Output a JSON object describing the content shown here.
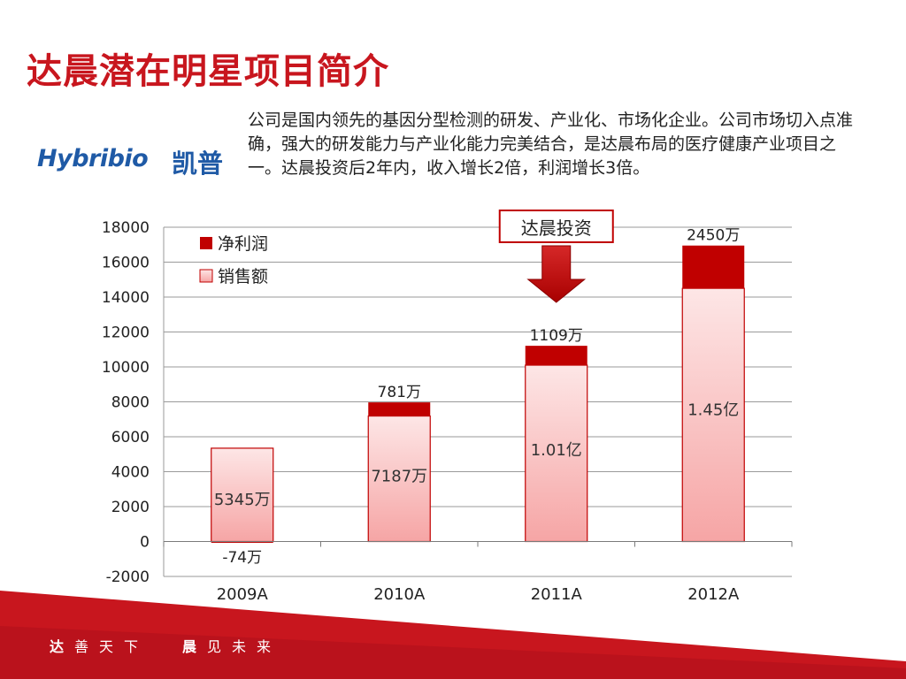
{
  "slide": {
    "title": "达晨潜在明星项目简介",
    "logo": {
      "text_en": "Hybribio",
      "text_cn": "凯普"
    },
    "intro": "公司是国内领先的基因分型检测的研发、产业化、市场化企业。公司市场切入点准确，强大的研发能力与产业化能力完美结合，是达晨布局的医疗健康产业项目之一。达晨投资后2年内，收入增长2倍，利润增长3倍。",
    "footer": {
      "slogan_left_bold": "达",
      "slogan_left": "善天下",
      "slogan_right_bold": "晨",
      "slogan_right": "见未来"
    },
    "colors": {
      "accent": "#c8161e",
      "logo": "#1f5aa6"
    }
  },
  "chart_data": {
    "type": "bar",
    "stacked": true,
    "categories": [
      "2009A",
      "2010A",
      "2011A",
      "2012A"
    ],
    "series": [
      {
        "name": "销售额",
        "values": [
          5345,
          7187,
          10100,
          14500
        ],
        "labels": [
          "5345万",
          "7187万",
          "1.01亿",
          "1.45亿"
        ],
        "color": "#f6a5a5"
      },
      {
        "name": "净利润",
        "values": [
          -74,
          781,
          1109,
          2450
        ],
        "labels": [
          "-74万",
          "781万",
          "1109万",
          "2450万"
        ],
        "color": "#c00000"
      }
    ],
    "yticks": [
      -2000,
      0,
      2000,
      4000,
      6000,
      8000,
      10000,
      12000,
      14000,
      16000,
      18000
    ],
    "ylim": [
      -2000,
      18000
    ],
    "grid": true,
    "legend": "top-left",
    "annotation": {
      "text": "达晨投资",
      "category": "2011A"
    }
  }
}
